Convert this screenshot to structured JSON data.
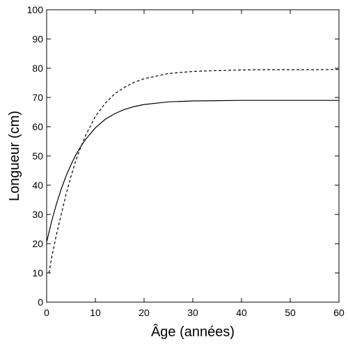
{
  "chart_data": {
    "type": "line",
    "xlabel": "Âge (années)",
    "ylabel": "Longueur (cm)",
    "xlim": [
      0,
      60
    ],
    "ylim": [
      0,
      100
    ],
    "x_ticks": [
      0,
      10,
      20,
      30,
      40,
      50,
      60
    ],
    "y_ticks": [
      0,
      10,
      20,
      30,
      40,
      50,
      60,
      70,
      80,
      90,
      100
    ],
    "grid": false,
    "legend": "none",
    "series": [
      {
        "style": "solid",
        "color": "#000000",
        "x": [
          0,
          1,
          2,
          3,
          4,
          5,
          6,
          7,
          8,
          10,
          12,
          14,
          16,
          18,
          20,
          25,
          30,
          35,
          40,
          45,
          50,
          55,
          60
        ],
        "y": [
          20.5,
          27.5,
          33.5,
          38.7,
          43.2,
          47,
          50.4,
          53.2,
          55.7,
          59.6,
          62.5,
          64.5,
          65.9,
          66.9,
          67.6,
          68.5,
          68.8,
          68.9,
          69,
          69,
          69,
          69,
          69
        ]
      },
      {
        "style": "dashed",
        "color": "#000000",
        "x": [
          0.5,
          1,
          2,
          3,
          4,
          5,
          6,
          7,
          8,
          10,
          12,
          14,
          16,
          18,
          20,
          25,
          30,
          35,
          40,
          45,
          50,
          55,
          60
        ],
        "y": [
          10,
          15,
          23,
          30,
          37,
          43,
          48.5,
          53,
          57,
          63.5,
          68,
          71.3,
          73.5,
          75.2,
          76.4,
          78.2,
          78.9,
          79.2,
          79.4,
          79.5,
          79.5,
          79.5,
          79.6
        ]
      }
    ]
  }
}
